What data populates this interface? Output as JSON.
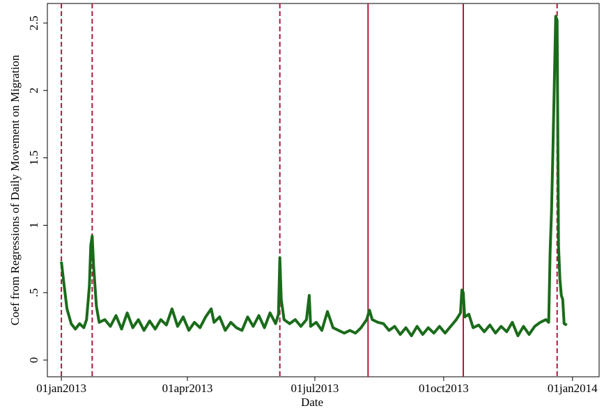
{
  "chart_data": {
    "type": "line",
    "xlabel": "Date",
    "ylabel": "Coef from Regressions of Daily Movement on Migration",
    "color": "#1a6b1a",
    "x": [
      "2013-01-01",
      "2013-01-03",
      "2013-01-05",
      "2013-01-08",
      "2013-01-11",
      "2013-01-14",
      "2013-01-17",
      "2013-01-19",
      "2013-01-21",
      "2013-01-22",
      "2013-01-23",
      "2013-01-24",
      "2013-01-26",
      "2013-01-28",
      "2013-02-01",
      "2013-02-05",
      "2013-02-09",
      "2013-02-13",
      "2013-02-17",
      "2013-02-21",
      "2013-02-25",
      "2013-03-01",
      "2013-03-05",
      "2013-03-09",
      "2013-03-13",
      "2013-03-17",
      "2013-03-21",
      "2013-03-25",
      "2013-03-29",
      "2013-04-02",
      "2013-04-06",
      "2013-04-10",
      "2013-04-14",
      "2013-04-18",
      "2013-04-20",
      "2013-04-24",
      "2013-04-28",
      "2013-05-02",
      "2013-05-06",
      "2013-05-10",
      "2013-05-14",
      "2013-05-18",
      "2013-05-22",
      "2013-05-26",
      "2013-05-30",
      "2013-06-03",
      "2013-06-05",
      "2013-06-06",
      "2013-06-07",
      "2013-06-09",
      "2013-06-13",
      "2013-06-17",
      "2013-06-21",
      "2013-06-25",
      "2013-06-27",
      "2013-06-28",
      "2013-07-02",
      "2013-07-06",
      "2013-07-10",
      "2013-07-14",
      "2013-07-18",
      "2013-07-22",
      "2013-07-26",
      "2013-07-30",
      "2013-08-03",
      "2013-08-07",
      "2013-08-09",
      "2013-08-11",
      "2013-08-15",
      "2013-08-19",
      "2013-08-23",
      "2013-08-27",
      "2013-08-31",
      "2013-09-04",
      "2013-09-08",
      "2013-09-12",
      "2013-09-16",
      "2013-09-20",
      "2013-09-24",
      "2013-09-28",
      "2013-10-02",
      "2013-10-06",
      "2013-10-10",
      "2013-10-13",
      "2013-10-14",
      "2013-10-15",
      "2013-10-16",
      "2013-10-19",
      "2013-10-22",
      "2013-10-26",
      "2013-10-30",
      "2013-11-03",
      "2013-11-07",
      "2013-11-11",
      "2013-11-15",
      "2013-11-19",
      "2013-11-23",
      "2013-11-27",
      "2013-12-01",
      "2013-12-05",
      "2013-12-09",
      "2013-12-13",
      "2013-12-15",
      "2013-12-16",
      "2013-12-17",
      "2013-12-18",
      "2013-12-19",
      "2013-12-20",
      "2013-12-21",
      "2013-12-22",
      "2013-12-23",
      "2013-12-24",
      "2013-12-25",
      "2013-12-26",
      "2013-12-28"
    ],
    "values": [
      0.73,
      0.55,
      0.38,
      0.27,
      0.23,
      0.27,
      0.24,
      0.3,
      0.55,
      0.85,
      0.92,
      0.7,
      0.4,
      0.28,
      0.3,
      0.25,
      0.33,
      0.23,
      0.35,
      0.24,
      0.3,
      0.22,
      0.29,
      0.23,
      0.3,
      0.26,
      0.38,
      0.25,
      0.32,
      0.22,
      0.28,
      0.24,
      0.32,
      0.38,
      0.28,
      0.32,
      0.22,
      0.28,
      0.24,
      0.22,
      0.32,
      0.25,
      0.33,
      0.24,
      0.35,
      0.27,
      0.34,
      0.76,
      0.45,
      0.3,
      0.27,
      0.3,
      0.25,
      0.3,
      0.48,
      0.25,
      0.28,
      0.22,
      0.36,
      0.24,
      0.22,
      0.2,
      0.22,
      0.2,
      0.24,
      0.3,
      0.37,
      0.3,
      0.28,
      0.27,
      0.22,
      0.25,
      0.19,
      0.24,
      0.18,
      0.25,
      0.19,
      0.24,
      0.2,
      0.25,
      0.2,
      0.25,
      0.3,
      0.35,
      0.52,
      0.5,
      0.32,
      0.34,
      0.24,
      0.26,
      0.21,
      0.26,
      0.2,
      0.25,
      0.21,
      0.28,
      0.18,
      0.25,
      0.19,
      0.25,
      0.28,
      0.3,
      0.28,
      0.8,
      1.1,
      1.55,
      2.05,
      2.55,
      2.52,
      0.85,
      0.6,
      0.48,
      0.45,
      0.27,
      0.26
    ],
    "vlines": [
      {
        "x": "2013-01-01",
        "style": "dashed"
      },
      {
        "x": "2013-01-23",
        "style": "dashed"
      },
      {
        "x": "2013-06-06",
        "style": "dashed"
      },
      {
        "x": "2013-08-08",
        "style": "solid"
      },
      {
        "x": "2013-10-15",
        "style": "solid"
      },
      {
        "x": "2013-12-21",
        "style": "dashed"
      }
    ],
    "vline_color": "#b0173c",
    "xlim": [
      "2012-12-22",
      "2014-01-20"
    ],
    "xticks": [
      {
        "value": "2013-01-01",
        "label": "01jan2013"
      },
      {
        "value": "2013-04-01",
        "label": "01apr2013"
      },
      {
        "value": "2013-07-01",
        "label": "01jul2013"
      },
      {
        "value": "2013-10-01",
        "label": "01oct2013"
      },
      {
        "value": "2014-01-01",
        "label": "01jan2014"
      }
    ],
    "ylim": [
      -0.124,
      2.645
    ],
    "yticks": [
      0,
      {
        "value": 0.5,
        "label": ".5"
      },
      1,
      1.5,
      2,
      2.5
    ]
  }
}
